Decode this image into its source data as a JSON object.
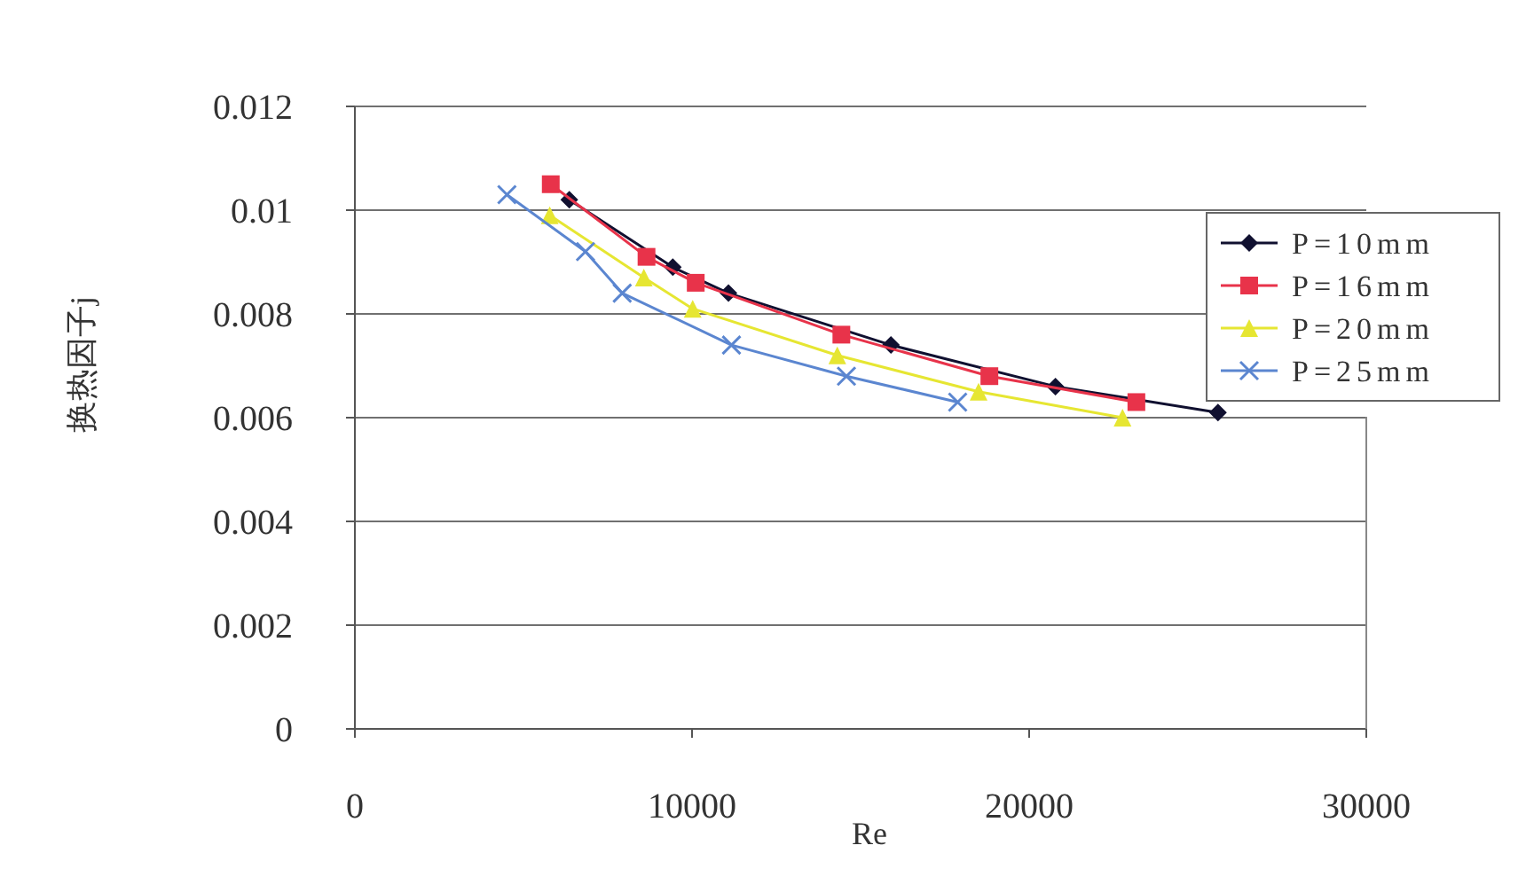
{
  "chart_data": {
    "type": "line",
    "xlabel": "Re",
    "ylabel": "换热因子j",
    "xlim": [
      0,
      30000
    ],
    "xticks": [
      0,
      10000,
      20000,
      30000
    ],
    "ylim": [
      0,
      0.012
    ],
    "yticks": [
      0,
      0.002,
      0.004,
      0.006,
      0.008,
      0.01,
      0.012
    ],
    "grid": "y",
    "legend": "top right",
    "series": [
      {
        "name": "P=10mm",
        "color": "#101030",
        "marker": "diamond",
        "x": [
          6360,
          9430,
          11080,
          15900,
          20780,
          25600
        ],
        "values": [
          0.0102,
          0.0089,
          0.0084,
          0.0074,
          0.0066,
          0.0061
        ]
      },
      {
        "name": "P=16mm",
        "color": "#e8334a",
        "marker": "square",
        "x": [
          5810,
          8650,
          10110,
          14430,
          18820,
          23180
        ],
        "values": [
          0.0105,
          0.0091,
          0.0086,
          0.0076,
          0.0068,
          0.0063
        ]
      },
      {
        "name": "P=20mm",
        "color": "#e6e632",
        "marker": "triangle",
        "x": [
          5780,
          8570,
          10020,
          14310,
          18500,
          22770
        ],
        "values": [
          0.0099,
          0.0087,
          0.0081,
          0.0072,
          0.0065,
          0.006
        ]
      },
      {
        "name": "P=25mm",
        "color": "#5b86d0",
        "marker": "cross",
        "x": [
          4510,
          6840,
          7930,
          11170,
          14580,
          17880
        ],
        "values": [
          0.0103,
          0.0092,
          0.0084,
          0.0074,
          0.0068,
          0.0063
        ]
      }
    ]
  }
}
